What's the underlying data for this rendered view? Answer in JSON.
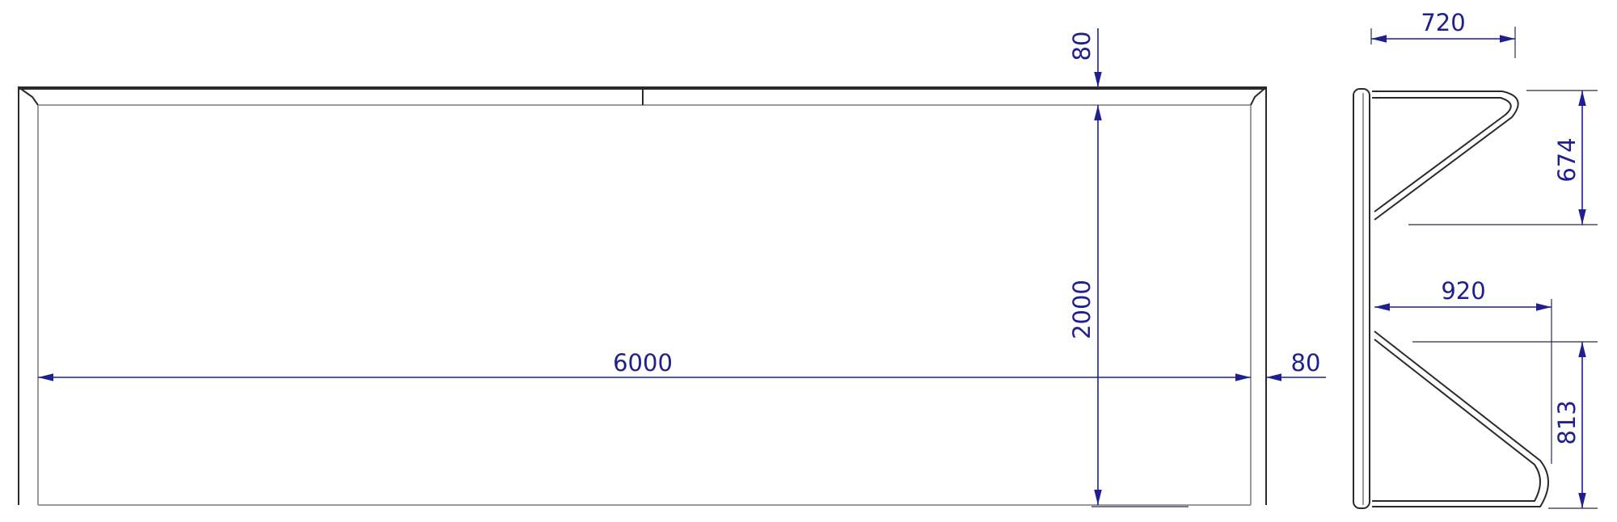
{
  "front_view": {
    "width_label": "6000",
    "height_label": "2000",
    "top_bar_label": "80",
    "post_label": "80"
  },
  "side_view": {
    "top_depth_label": "720",
    "top_height_label": "674",
    "bottom_depth_label": "920",
    "bottom_height_label": "813"
  },
  "colors": {
    "dimension": "#1f1f8f",
    "outline": "#2a2a2a"
  }
}
